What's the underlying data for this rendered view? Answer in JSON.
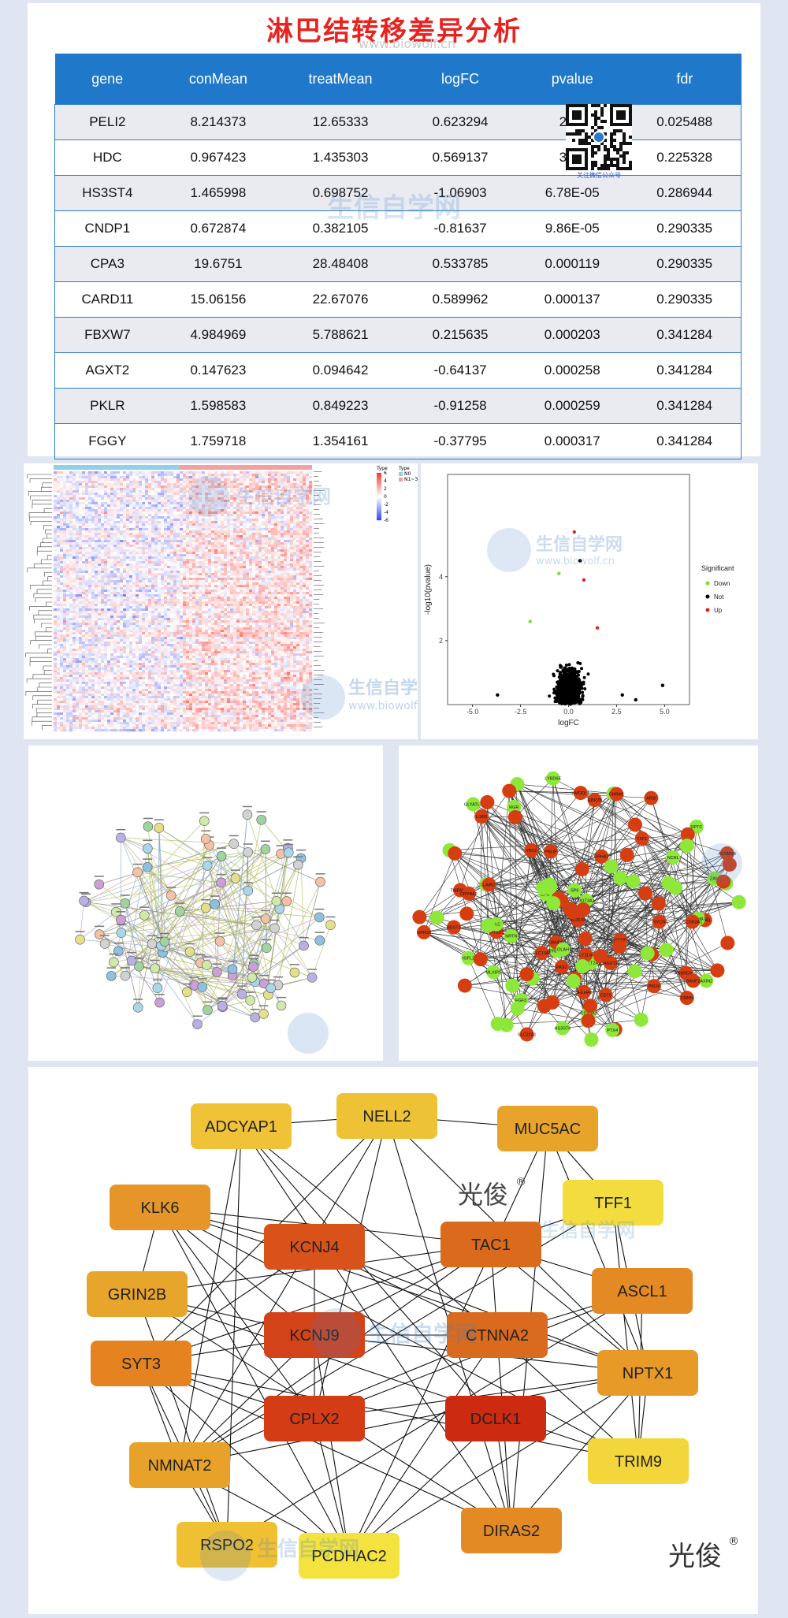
{
  "title": "淋巴结转移差异分析",
  "watermark": {
    "site": "生信自学网",
    "url": "www.biowolf.cn",
    "qr_caption": "关注微信公众号",
    "signature": "光俊"
  },
  "table": {
    "columns": [
      "gene",
      "conMean",
      "treatMean",
      "logFC",
      "pvalue",
      "fdr"
    ],
    "rows": [
      [
        "PELI2",
        "8.214373",
        "12.65333",
        "0.623294",
        "2.01",
        "0.025488"
      ],
      [
        "HDC",
        "0.967423",
        "1.435303",
        "0.569137",
        "3.55",
        "0.225328"
      ],
      [
        "HS3ST4",
        "1.465998",
        "0.698752",
        "-1.06903",
        "6.78E-05",
        "0.286944"
      ],
      [
        "CNDP1",
        "0.672874",
        "0.382105",
        "-0.81637",
        "9.86E-05",
        "0.290335"
      ],
      [
        "CPA3",
        "19.6751",
        "28.48408",
        "0.533785",
        "0.000119",
        "0.290335"
      ],
      [
        "CARD11",
        "15.06156",
        "22.67076",
        "0.589962",
        "0.000137",
        "0.290335"
      ],
      [
        "FBXW7",
        "4.984969",
        "5.788621",
        "0.215635",
        "0.000203",
        "0.341284"
      ],
      [
        "AGXT2",
        "0.147623",
        "0.094642",
        "-0.64137",
        "0.000258",
        "0.341284"
      ],
      [
        "PKLR",
        "1.598583",
        "0.849223",
        "-0.91258",
        "0.000259",
        "0.341284"
      ],
      [
        "FGGY",
        "1.759718",
        "1.354161",
        "-0.37795",
        "0.000317",
        "0.341284"
      ]
    ]
  },
  "heatmap": {
    "legend_title": "Type",
    "legend_items": [
      "N0",
      "N1~3"
    ],
    "scale": [
      "6",
      "4",
      "2",
      "0",
      "-2",
      "-4",
      "-6"
    ]
  },
  "volcano": {
    "xlabel": "logFC",
    "ylabel": "-log10(pvalue)",
    "xticks": [
      "-5.0",
      "-2.5",
      "0.0",
      "2.5",
      "5.0"
    ],
    "yticks": [
      "2",
      "4"
    ],
    "legend_title": "Significant",
    "legend": [
      {
        "name": "Down",
        "color": "#7fdb3b"
      },
      {
        "name": "Not",
        "color": "#000000"
      },
      {
        "name": "Up",
        "color": "#d9281b"
      }
    ]
  },
  "ppi_labels": [
    "LYBD6E",
    "ZAN",
    "GPR32",
    "CDX8A2",
    "GPHA2",
    "PRLHR",
    "LGR6",
    "SP6",
    "GBP2B",
    "NRTN",
    "DPTC",
    "GLYATL2",
    "BEST3",
    "TMEM211",
    "SHLHA9",
    "KCNJ9",
    "ARSF",
    "EPO",
    "ANKRD36B",
    "UMODL1",
    "TFF1",
    "AXIN2",
    "CD70",
    "NTS",
    "CRNN",
    "CITED1",
    "DAND5",
    "PAX2",
    "TAC1",
    "CTNNA2",
    "FGF3",
    "KLK4",
    "LAIR2",
    "PNLIP",
    "YBX2",
    "PCDHA12",
    "HS3ST6",
    "CHRM1",
    "MLXIPL",
    "CLC",
    "SYCN",
    "IGFL2",
    "SULT2A1",
    "SLC22A1",
    "LYZL4",
    "PKLR",
    "AGXT2",
    "GDEP",
    "UGT3A1",
    "ACSM2B",
    "SLC13A1",
    "OLAH",
    "BANF2",
    "PTX4",
    "RGR",
    "CRYBA2",
    "SCGB3A1",
    "NCRL",
    "ARSI"
  ],
  "hub": {
    "signature": "光俊",
    "nodes": [
      {
        "label": "ADCYAP1",
        "color": "#f0c237"
      },
      {
        "label": "NELL2",
        "color": "#eec235"
      },
      {
        "label": "MUC5AC",
        "color": "#e8a32b"
      },
      {
        "label": "KLK6",
        "color": "#e69628"
      },
      {
        "label": "TFF1",
        "color": "#f3dd3e"
      },
      {
        "label": "KCNJ4",
        "color": "#d9521a"
      },
      {
        "label": "TAC1",
        "color": "#da6a1c"
      },
      {
        "label": "GRIN2B",
        "color": "#e8a52c"
      },
      {
        "label": "ASCL1",
        "color": "#e48a24"
      },
      {
        "label": "KCNJ9",
        "color": "#d2431a"
      },
      {
        "label": "CTNNA2",
        "color": "#da6a1d"
      },
      {
        "label": "SYT3",
        "color": "#e4831f"
      },
      {
        "label": "NPTX1",
        "color": "#e79a28"
      },
      {
        "label": "CPLX2",
        "color": "#d43c16"
      },
      {
        "label": "DCLK1",
        "color": "#cd2a12"
      },
      {
        "label": "NMNAT2",
        "color": "#e8a22a"
      },
      {
        "label": "TRIM9",
        "color": "#f3d63c"
      },
      {
        "label": "RSPO2",
        "color": "#f0c033"
      },
      {
        "label": "PCDHAC2",
        "color": "#f4e33f"
      },
      {
        "label": "DIRAS2",
        "color": "#e48a25"
      }
    ]
  }
}
